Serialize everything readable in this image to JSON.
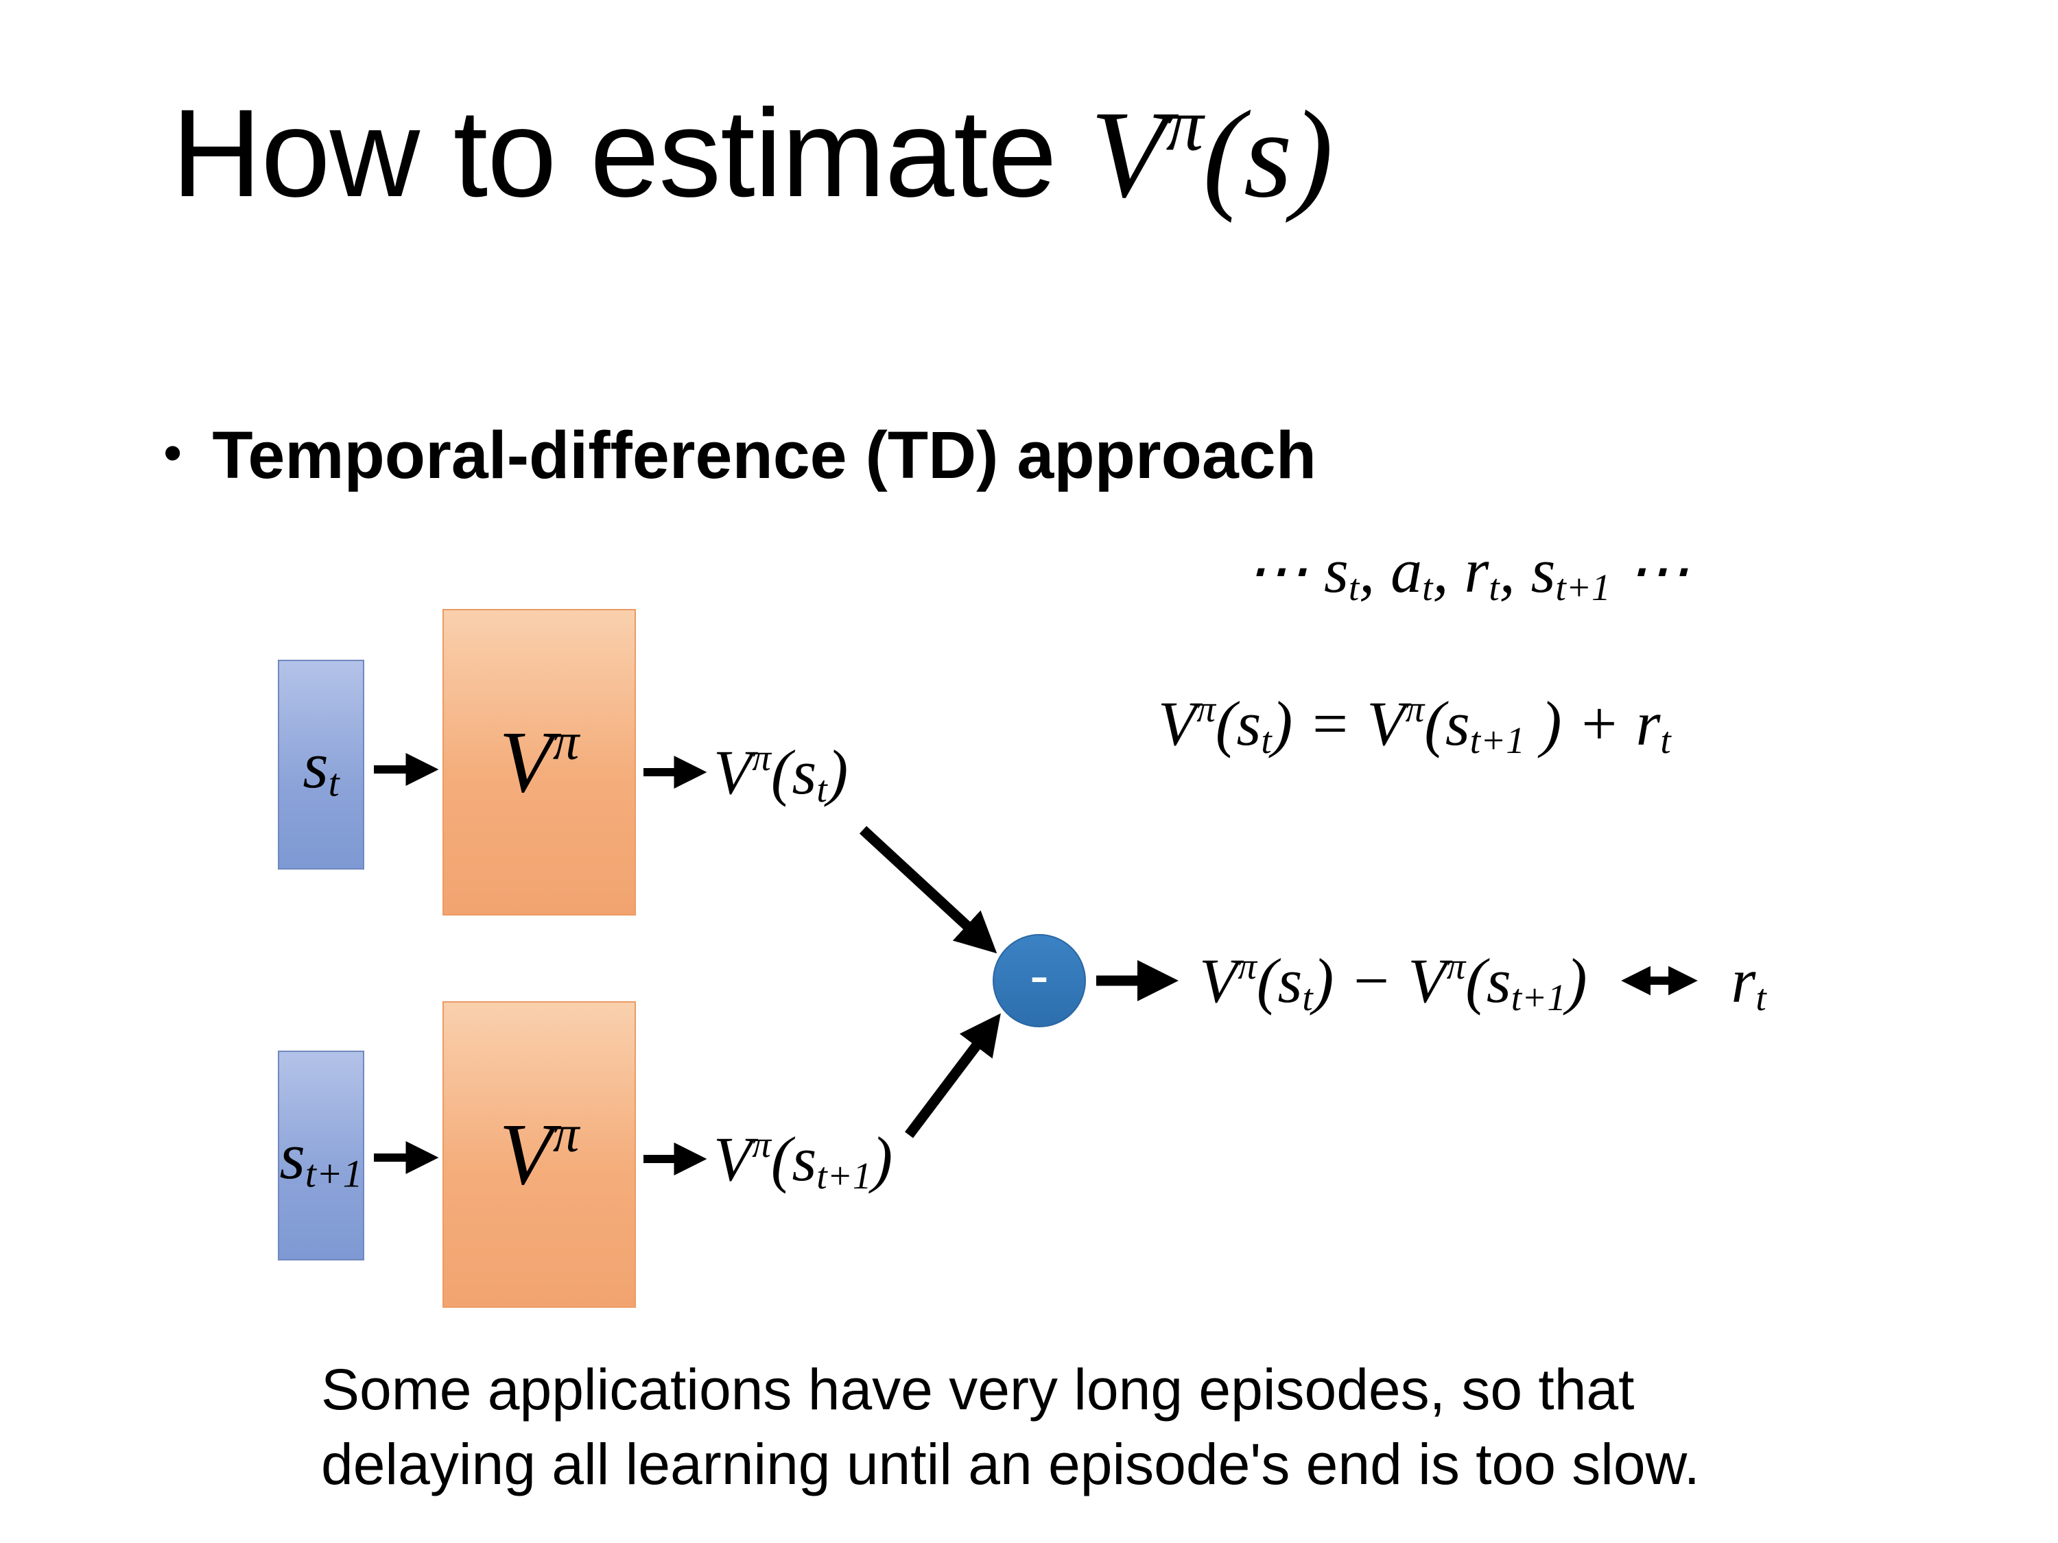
{
  "slide": {
    "title_text": "How to estimate ",
    "title_math": "V<sup>π</sup>(s)",
    "bullet_marker": "•",
    "bullet_text": "Temporal-difference (TD) approach",
    "trajectory": "⋯ s<sub>t</sub>, a<sub>t</sub>, r<sub>t</sub>, s<sub>t+1</sub> ⋯",
    "td_equation": "V<sup>π</sup>(s<sub>t</sub>) = V<sup>π</sup>(s<sub>t+1</sub> ) + r<sub>t</sub>",
    "footer_line1": "Some applications have very long episodes, so that",
    "footer_line2": "delaying all learning until an episode's end is too slow."
  },
  "diagram": {
    "state_t": "s<sub>t</sub>",
    "state_t_plus_1": "s<sub>t+1</sub>",
    "value_network": "V<sup>π</sup>",
    "value_output_t": "V<sup>π</sup>(s<sub>t</sub>)",
    "value_output_t_plus_1": "V<sup>π</sup>(s<sub>t+1</sub>)",
    "minus_sign": "-",
    "difference": "V<sup>π</sup>(s<sub>t</sub>) − V<sup>π</sup>(s<sub>t+1</sub>)",
    "reward": "r<sub>t</sub>",
    "colors": {
      "state_box_fill": "#8fa8da",
      "value_box_fill": "#f4b183",
      "minus_node_fill": "#2e75b6",
      "arrow": "#000000"
    }
  }
}
